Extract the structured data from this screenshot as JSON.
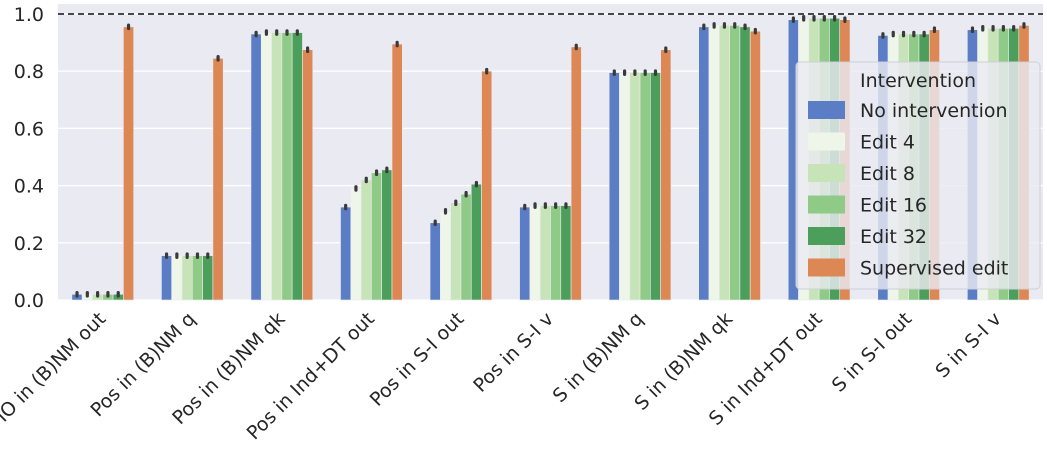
{
  "chart_data": {
    "type": "bar",
    "categories": [
      "IO in (B)NM out",
      "Pos in (B)NM q",
      "Pos in (B)NM qk",
      "Pos in Ind+DT out",
      "Pos in S-I out",
      "Pos in S-I v",
      "S in (B)NM q",
      "S in (B)NM qk",
      "S in Ind+DT out",
      "S in S-I out",
      "S in S-I v"
    ],
    "series": [
      {
        "name": "No intervention",
        "color": "#5a7dc6",
        "values": [
          0.02,
          0.155,
          0.93,
          0.325,
          0.27,
          0.325,
          0.795,
          0.955,
          0.98,
          0.925,
          0.945
        ]
      },
      {
        "name": "Edit 4",
        "color": "#eef6e9",
        "values": [
          0.02,
          0.155,
          0.935,
          0.39,
          0.31,
          0.33,
          0.795,
          0.96,
          0.985,
          0.93,
          0.95
        ]
      },
      {
        "name": "Edit 8",
        "color": "#c7e4b9",
        "values": [
          0.02,
          0.155,
          0.935,
          0.42,
          0.34,
          0.33,
          0.795,
          0.96,
          0.985,
          0.93,
          0.95
        ]
      },
      {
        "name": "Edit 16",
        "color": "#8fcb87",
        "values": [
          0.02,
          0.155,
          0.935,
          0.445,
          0.37,
          0.33,
          0.795,
          0.96,
          0.985,
          0.93,
          0.95
        ]
      },
      {
        "name": "Edit 32",
        "color": "#4c9f5b",
        "values": [
          0.02,
          0.155,
          0.935,
          0.455,
          0.405,
          0.33,
          0.795,
          0.955,
          0.985,
          0.93,
          0.95
        ]
      },
      {
        "name": "Supervised edit",
        "color": "#dd8755",
        "values": [
          0.955,
          0.845,
          0.875,
          0.895,
          0.8,
          0.885,
          0.875,
          0.94,
          0.98,
          0.945,
          0.96
        ]
      }
    ],
    "ylim": [
      0,
      1.0
    ],
    "yticks": [
      "0.0",
      "0.2",
      "0.4",
      "0.6",
      "0.8",
      "1.0"
    ],
    "reference_line": 1.0,
    "grid": true,
    "legend": {
      "title": "Intervention",
      "placement": "right"
    },
    "xlabel": "",
    "ylabel": "",
    "title": ""
  }
}
